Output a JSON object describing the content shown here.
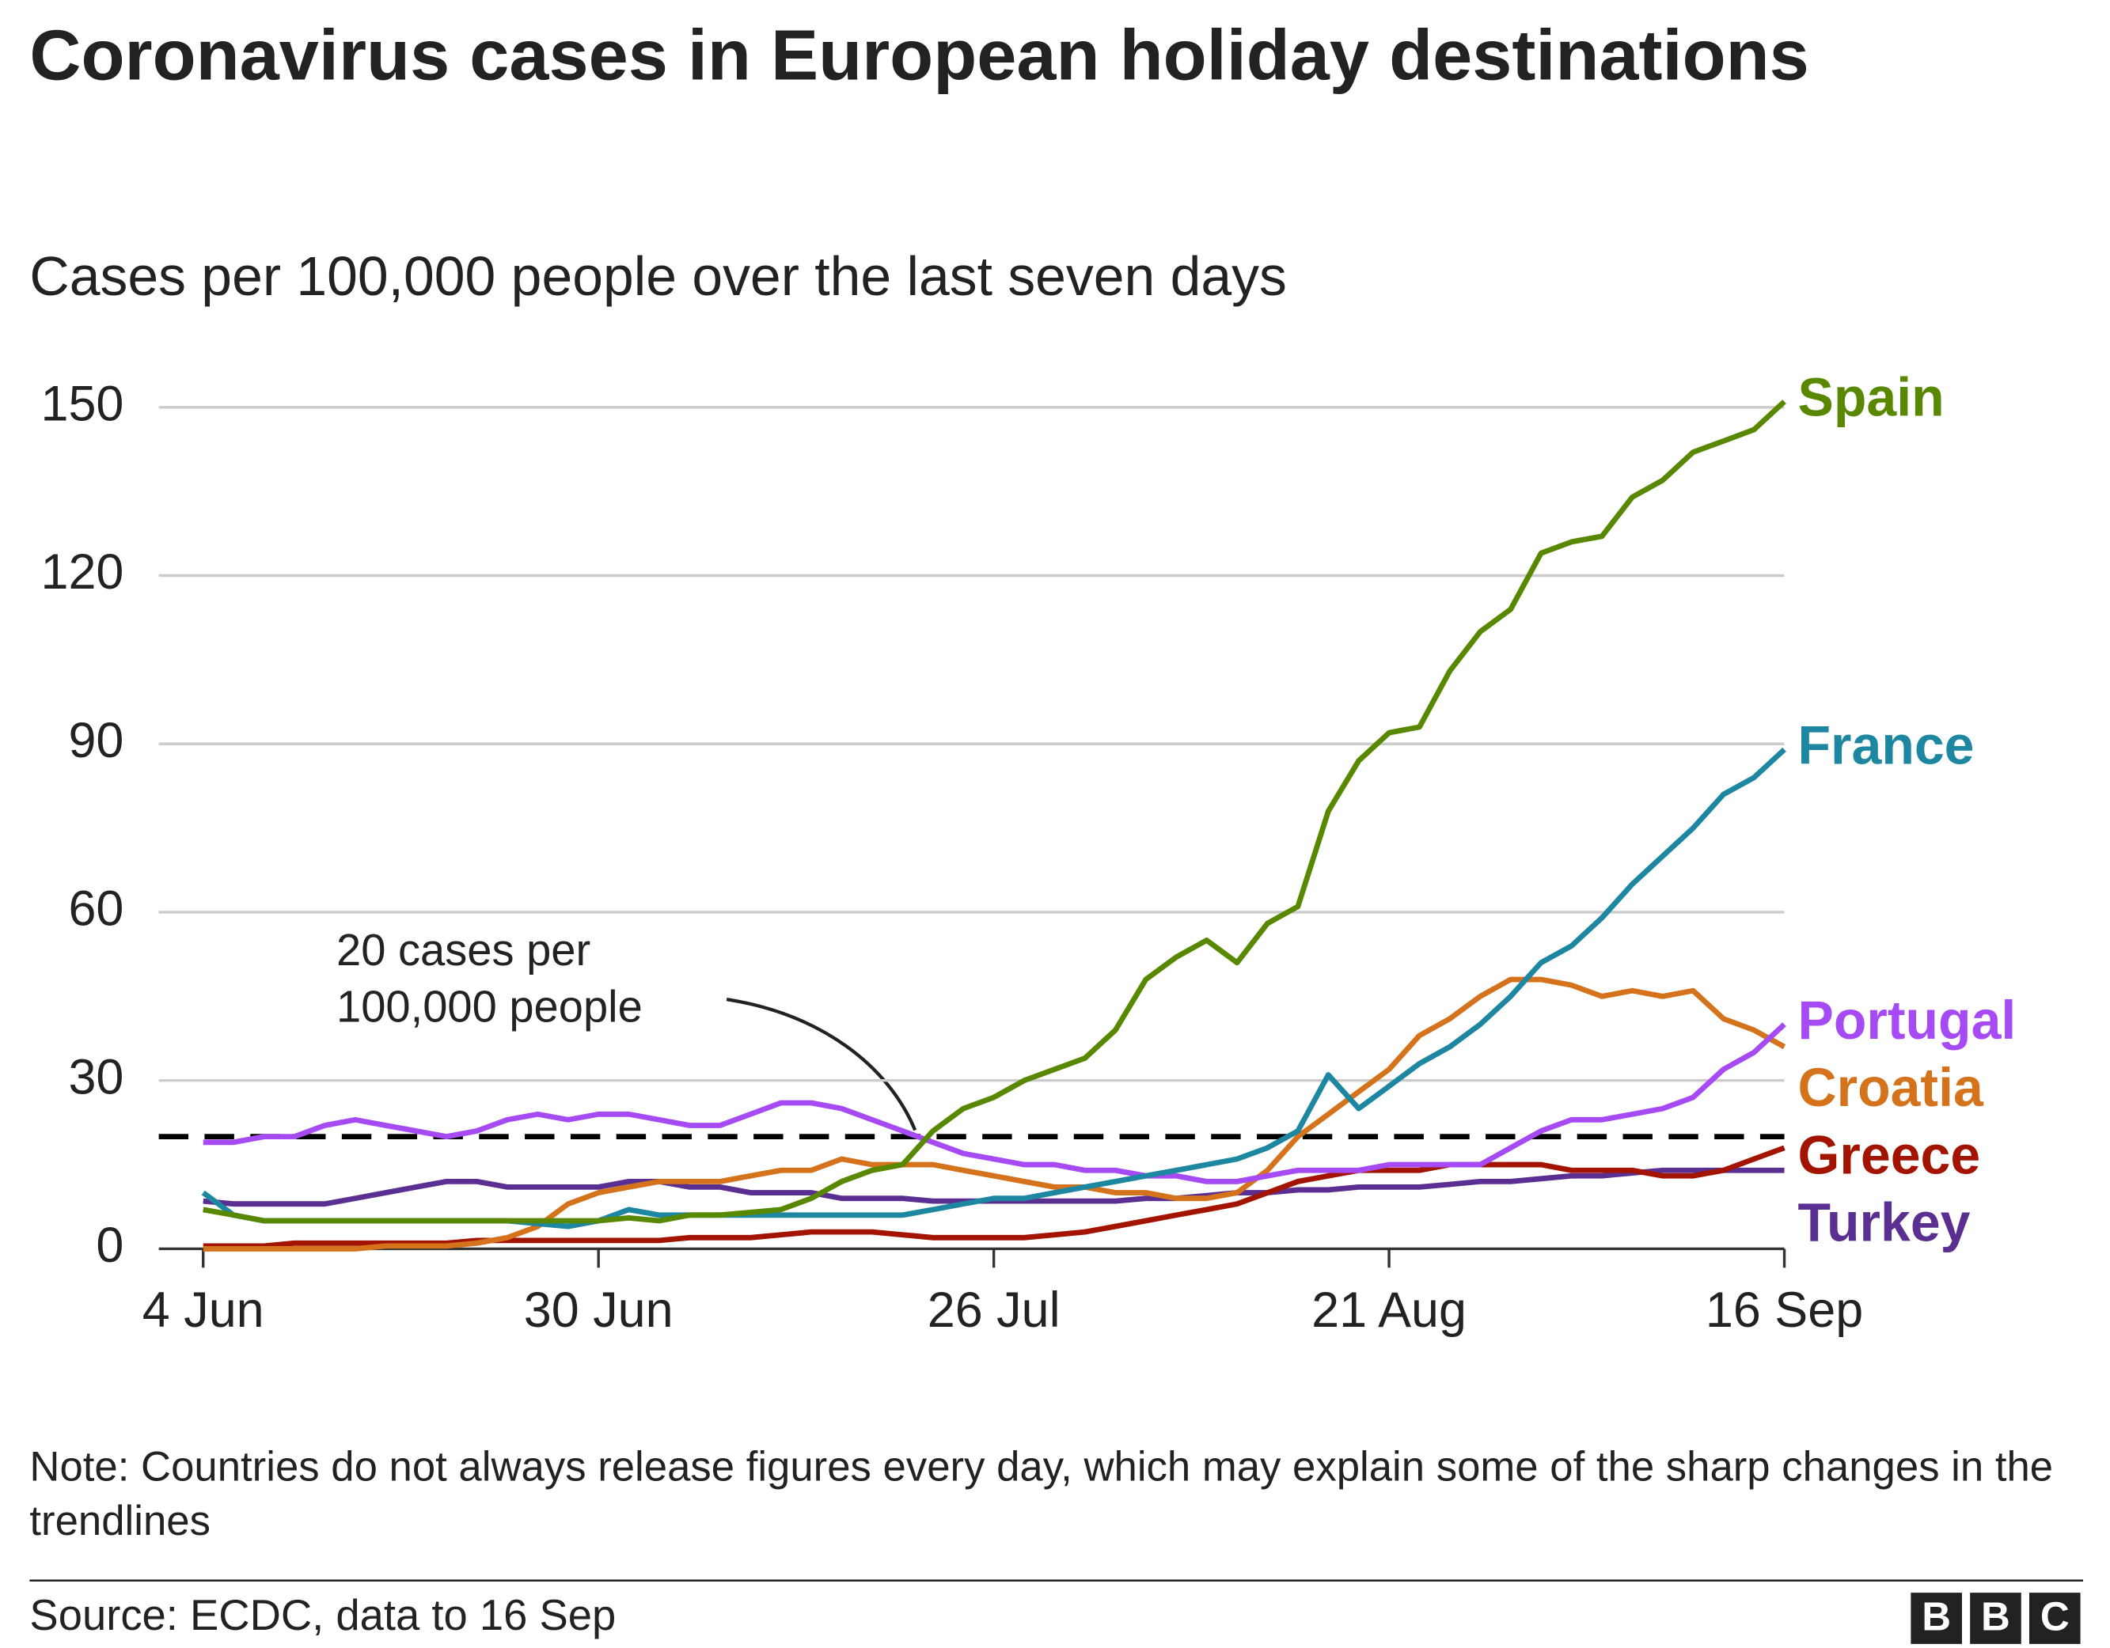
{
  "chart_data": {
    "type": "line",
    "title": "Coronavirus cases in European holiday destinations",
    "subtitle": "Cases per 100,000 people over the last seven days",
    "note": "Note: Countries do not always release figures every day, which may explain some of the sharp changes in the trendlines",
    "source": "Source: ECDC, data to 16 Sep",
    "logo": [
      "B",
      "B",
      "C"
    ],
    "annotation": [
      "20 cases per",
      "100,000 people"
    ],
    "hline": 20,
    "grid": true,
    "x": [
      "4 Jun",
      "6 Jun",
      "8 Jun",
      "10 Jun",
      "12 Jun",
      "14 Jun",
      "16 Jun",
      "18 Jun",
      "20 Jun",
      "22 Jun",
      "24 Jun",
      "26 Jun",
      "28 Jun",
      "30 Jun",
      "2 Jul",
      "4 Jul",
      "6 Jul",
      "8 Jul",
      "10 Jul",
      "12 Jul",
      "14 Jul",
      "16 Jul",
      "18 Jul",
      "20 Jul",
      "22 Jul",
      "24 Jul",
      "26 Jul",
      "28 Jul",
      "30 Jul",
      "1 Aug",
      "3 Aug",
      "5 Aug",
      "7 Aug",
      "9 Aug",
      "11 Aug",
      "13 Aug",
      "15 Aug",
      "17 Aug",
      "19 Aug",
      "21 Aug",
      "23 Aug",
      "25 Aug",
      "27 Aug",
      "29 Aug",
      "31 Aug",
      "2 Sep",
      "4 Sep",
      "6 Sep",
      "8 Sep",
      "10 Sep",
      "12 Sep",
      "14 Sep",
      "16 Sep"
    ],
    "xticks": [
      "4 Jun",
      "30 Jun",
      "26 Jul",
      "21 Aug",
      "16 Sep"
    ],
    "ylim": [
      0,
      150
    ],
    "yticks": [
      0,
      30,
      60,
      90,
      120,
      150
    ],
    "series": [
      {
        "name": "Spain",
        "color": "#588700",
        "values": [
          7,
          6,
          5,
          5,
          5,
          5,
          5,
          5,
          5,
          5,
          5,
          5,
          5,
          5,
          5.5,
          5,
          6,
          6,
          6.5,
          7,
          9,
          12,
          14,
          15,
          21,
          25,
          27,
          30,
          32,
          34,
          39,
          48,
          52,
          55,
          51,
          58,
          61,
          78,
          87,
          92,
          93,
          103,
          110,
          114,
          124,
          126,
          127,
          134,
          137,
          142,
          144,
          146,
          151
        ]
      },
      {
        "name": "France",
        "color": "#1d86a0",
        "values": [
          10,
          6,
          5,
          5,
          5,
          5,
          5,
          5,
          5,
          5,
          5,
          4.5,
          4,
          5,
          7,
          6,
          6,
          6,
          6,
          6,
          6,
          6,
          6,
          6,
          7,
          8,
          9,
          9,
          10,
          11,
          12,
          13,
          14,
          15,
          16,
          18,
          21,
          31,
          25,
          29,
          33,
          36,
          40,
          45,
          51,
          54,
          59,
          65,
          70,
          75,
          81,
          84,
          89
        ]
      },
      {
        "name": "Portugal",
        "color": "#a64bf4",
        "values": [
          19,
          19,
          20,
          20,
          22,
          23,
          22,
          21,
          20,
          21,
          23,
          24,
          23,
          24,
          24,
          23,
          22,
          22,
          24,
          26,
          26,
          25,
          23,
          21,
          19,
          17,
          16,
          15,
          15,
          14,
          14,
          13,
          13,
          12,
          12,
          13,
          14,
          14,
          14,
          15,
          15,
          15,
          15,
          18,
          21,
          23,
          23,
          24,
          25,
          27,
          32,
          35,
          40
        ]
      },
      {
        "name": "Croatia",
        "color": "#d4731b",
        "values": [
          0,
          0,
          0,
          0,
          0,
          0,
          0.5,
          0.5,
          0.5,
          1,
          2,
          4,
          8,
          10,
          11,
          12,
          12,
          12,
          13,
          14,
          14,
          16,
          15,
          15,
          15,
          14,
          13,
          12,
          11,
          11,
          10,
          10,
          9,
          9,
          10,
          14,
          20,
          24,
          28,
          32,
          38,
          41,
          45,
          48,
          48,
          47,
          45,
          46,
          45,
          46,
          41,
          39,
          36
        ]
      },
      {
        "name": "Greece",
        "color": "#a31400",
        "values": [
          0.5,
          0.5,
          0.5,
          1,
          1,
          1,
          1,
          1,
          1,
          1.5,
          1.5,
          1.5,
          1.5,
          1.5,
          1.5,
          1.5,
          2,
          2,
          2,
          2.5,
          3,
          3,
          3,
          2.5,
          2,
          2,
          2,
          2,
          2.5,
          3,
          4,
          5,
          6,
          7,
          8,
          10,
          12,
          13,
          14,
          14,
          14,
          15,
          15,
          15,
          15,
          14,
          14,
          14,
          13,
          13,
          14,
          16,
          18
        ]
      },
      {
        "name": "Turkey",
        "color": "#5b2f91",
        "values": [
          8.5,
          8,
          8,
          8,
          8,
          9,
          10,
          11,
          12,
          12,
          11,
          11,
          11,
          11,
          12,
          12,
          11,
          11,
          10,
          10,
          10,
          9,
          9,
          9,
          8.5,
          8.5,
          8.5,
          8.5,
          8.5,
          8.5,
          8.5,
          9,
          9,
          9.5,
          10,
          10,
          10.5,
          10.5,
          11,
          11,
          11,
          11.5,
          12,
          12,
          12.5,
          13,
          13,
          13.5,
          14,
          14,
          14,
          14,
          14
        ]
      }
    ]
  }
}
